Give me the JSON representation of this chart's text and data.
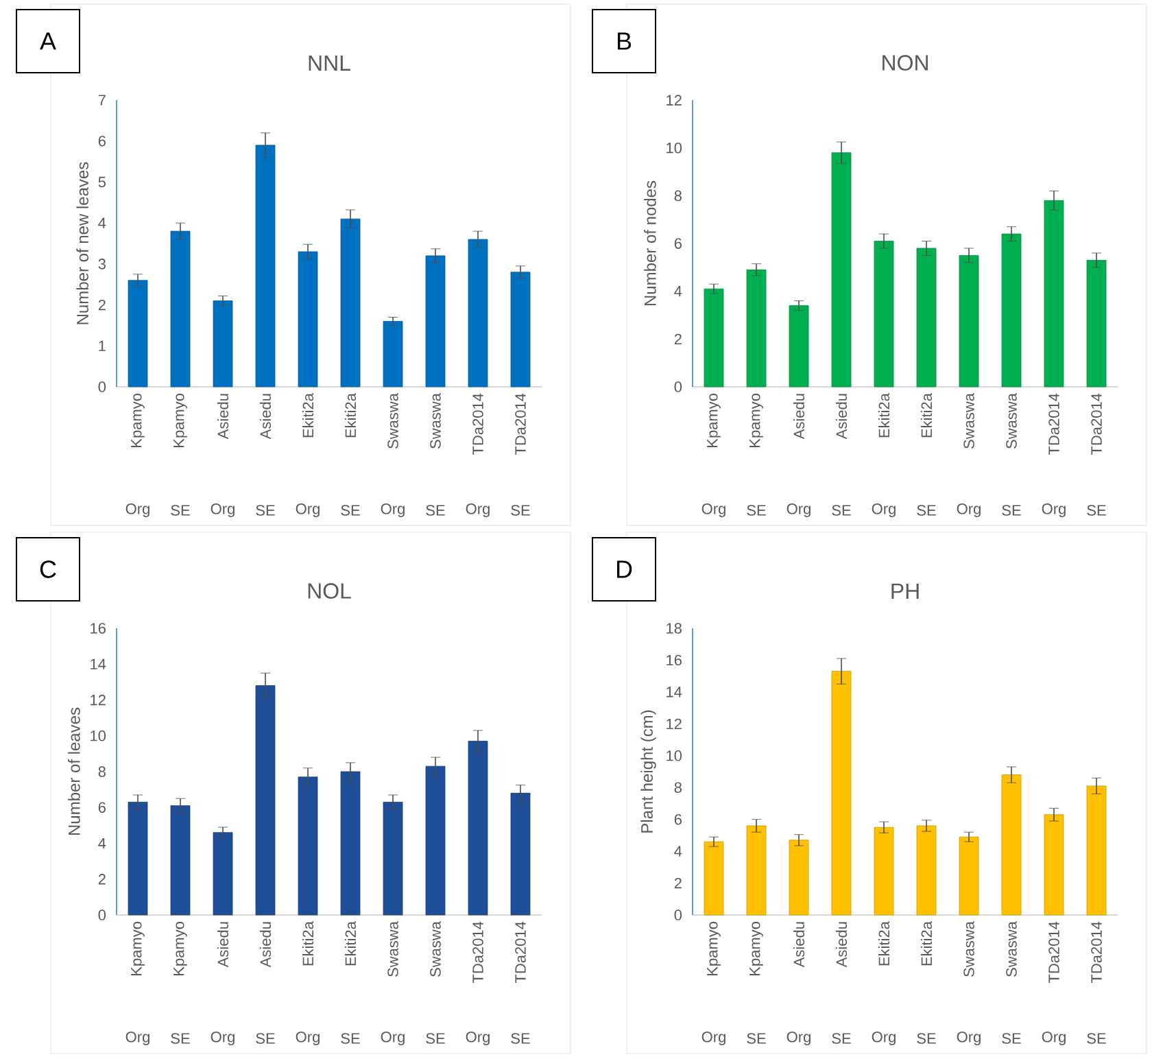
{
  "chart_data": [
    {
      "type": "bar",
      "title": "NNL",
      "ylabel": "Number of new leaves",
      "categories": [
        "Kpamyo",
        "Kpamyo",
        "Asiedu",
        "Asiedu",
        "Ekiti2a",
        "Ekiti2a",
        "Swaswa",
        "Swaswa",
        "TDa2014",
        "TDa2014"
      ],
      "annotations": [
        "A",
        "Org",
        "SE",
        "Org",
        "SE",
        "Org",
        "SE",
        "Org",
        "SE",
        "Org",
        "SE"
      ],
      "color": "#0070c0",
      "values": [
        2.6,
        3.8,
        2.1,
        5.9,
        3.3,
        4.1,
        1.6,
        3.2,
        3.6,
        2.8
      ],
      "errors": [
        0.15,
        0.2,
        0.12,
        0.3,
        0.18,
        0.22,
        0.1,
        0.17,
        0.2,
        0.15
      ],
      "ylim": [
        0,
        7
      ],
      "yticks": [
        0,
        1,
        2,
        3,
        4,
        5,
        6,
        7
      ]
    },
    {
      "type": "bar",
      "title": "NON",
      "ylabel": "Number of nodes",
      "categories": [
        "Kpamyo",
        "Kpamyo",
        "Asiedu",
        "Asiedu",
        "Ekiti2a",
        "Ekiti2a",
        "Swaswa",
        "Swaswa",
        "TDa2014",
        "TDa2014"
      ],
      "annotations": [
        "B",
        "Org",
        "SE",
        "Org",
        "SE",
        "Org",
        "SE",
        "Org",
        "SE",
        "Org",
        "SE"
      ],
      "color": "#00b050",
      "values": [
        4.1,
        4.9,
        3.4,
        9.8,
        6.1,
        5.8,
        5.5,
        6.4,
        7.8,
        5.3
      ],
      "errors": [
        0.2,
        0.25,
        0.2,
        0.45,
        0.3,
        0.3,
        0.3,
        0.3,
        0.4,
        0.3
      ],
      "ylim": [
        0,
        12
      ],
      "yticks": [
        0,
        2,
        4,
        6,
        8,
        10,
        12
      ]
    },
    {
      "type": "bar",
      "title": "NOL",
      "ylabel": "Number of leaves",
      "categories": [
        "Kpamyo",
        "Kpamyo",
        "Asiedu",
        "Asiedu",
        "Ekiti2a",
        "Ekiti2a",
        "Swaswa",
        "Swaswa",
        "TDa2014",
        "TDa2014"
      ],
      "annotations": [
        "C",
        "Org",
        "SE",
        "Org",
        "SE",
        "Org",
        "SE",
        "Org",
        "SE",
        "Org",
        "SE"
      ],
      "color": "#1f4e99",
      "values": [
        6.3,
        6.1,
        4.6,
        12.8,
        7.7,
        8.0,
        6.3,
        8.3,
        9.7,
        6.8
      ],
      "errors": [
        0.4,
        0.4,
        0.3,
        0.7,
        0.5,
        0.5,
        0.4,
        0.5,
        0.6,
        0.45
      ],
      "ylim": [
        0,
        16
      ],
      "yticks": [
        0,
        2,
        4,
        6,
        8,
        10,
        12,
        14,
        16
      ]
    },
    {
      "type": "bar",
      "title": "PH",
      "ylabel": "Plant height (cm)",
      "categories": [
        "Kpamyo",
        "Kpamyo",
        "Asiedu",
        "Asiedu",
        "Ekiti2a",
        "Ekiti2a",
        "Swaswa",
        "Swaswa",
        "TDa2014",
        "TDa2014"
      ],
      "annotations": [
        "D",
        "Org",
        "SE",
        "Org",
        "SE",
        "Org",
        "SE",
        "Org",
        "SE",
        "Org",
        "SE"
      ],
      "color": "#ffc000",
      "values": [
        4.6,
        5.6,
        4.7,
        15.3,
        5.5,
        5.6,
        4.9,
        8.8,
        6.3,
        8.1
      ],
      "errors": [
        0.3,
        0.4,
        0.35,
        0.8,
        0.35,
        0.35,
        0.3,
        0.5,
        0.4,
        0.5
      ],
      "ylim": [
        0,
        18
      ],
      "yticks": [
        0,
        2,
        4,
        6,
        8,
        10,
        12,
        14,
        16,
        18
      ]
    }
  ]
}
